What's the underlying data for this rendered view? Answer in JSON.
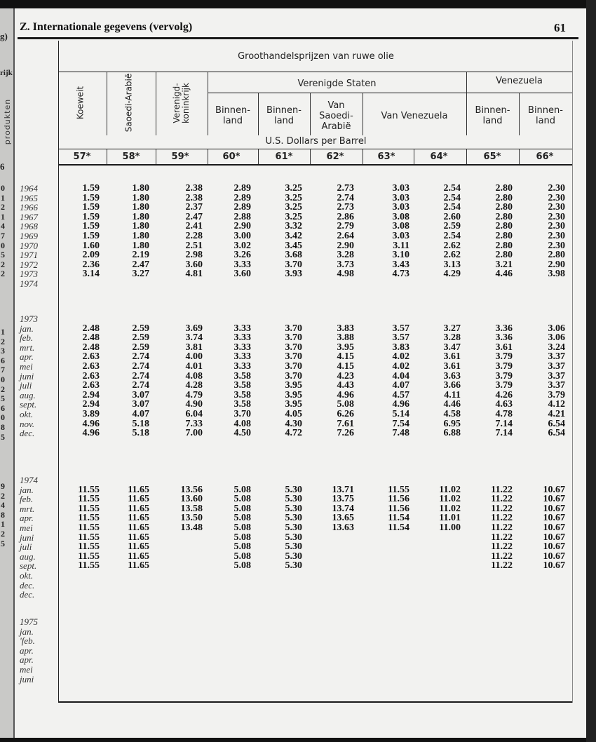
{
  "page": {
    "title": "Z. Internationale gegevens (vervolg)",
    "page_number": "61"
  },
  "previous_page_edge": {
    "fragments": [
      "g)",
      "rijk",
      "produkten",
      "6"
    ],
    "digits_1": "0\n1\n2\n1\n4\n7\n0\n5\n2\n2",
    "digits_2": "1\n2\n3\n6\n7\n0\n2\n5\n6\n0\n8\n5",
    "digits_3": "9\n2\n4\n8\n1\n2\n5"
  },
  "table": {
    "caption": "Groothandelsprijzen van ruwe olie",
    "unit": "U.S. Dollars per Barrel",
    "groups": {
      "us": "Verenigde Staten",
      "venezuela": "Venezuela"
    },
    "columns": [
      {
        "label": "Koeweit",
        "code": "57*"
      },
      {
        "label": "Saoedi-Arabië",
        "code": "58*"
      },
      {
        "label": "Verenigd-\nkoninkrijk",
        "code": "59*"
      },
      {
        "label": "Binnen-\nland",
        "code": "60*"
      },
      {
        "label": "Binnen-\nland",
        "code": "61*"
      },
      {
        "label": "Van\nSaoedi-\nArabië",
        "code": "62*"
      },
      {
        "label": "Van Venezuela",
        "code": "63*"
      },
      {
        "label": "",
        "code": "64*"
      },
      {
        "label": "Binnen-\nland",
        "code": "65*"
      },
      {
        "label": "Binnen-\nland",
        "code": "66*"
      }
    ],
    "sections": [
      {
        "heading": "",
        "rows": [
          {
            "label": "1964",
            "values": [
              "1.59",
              "1.80",
              "2.38",
              "2.89",
              "3.25",
              "2.73",
              "3.03",
              "2.54",
              "2.80",
              "2.30"
            ]
          },
          {
            "label": "1965",
            "values": [
              "1.59",
              "1.80",
              "2.38",
              "2.89",
              "3.25",
              "2.74",
              "3.03",
              "2.54",
              "2.80",
              "2.30"
            ]
          },
          {
            "label": "1966",
            "values": [
              "1.59",
              "1.80",
              "2.37",
              "2.89",
              "3.25",
              "2.73",
              "3.03",
              "2.54",
              "2.80",
              "2.30"
            ]
          },
          {
            "label": "1967",
            "values": [
              "1.59",
              "1.80",
              "2.47",
              "2.88",
              "3.25",
              "2.86",
              "3.08",
              "2.60",
              "2.80",
              "2.30"
            ]
          },
          {
            "label": "1968",
            "values": [
              "1.59",
              "1.80",
              "2.41",
              "2.90",
              "3.32",
              "2.79",
              "3.08",
              "2.59",
              "2.80",
              "2.30"
            ]
          },
          {
            "label": "1969",
            "values": [
              "1.59",
              "1.80",
              "2.28",
              "3.00",
              "3.42",
              "2.64",
              "3.03",
              "2.54",
              "2.80",
              "2.30"
            ]
          },
          {
            "label": "1970",
            "values": [
              "1.60",
              "1.80",
              "2.51",
              "3.02",
              "3.45",
              "2.90",
              "3.11",
              "2.62",
              "2.80",
              "2.30"
            ]
          },
          {
            "label": "1971",
            "values": [
              "2.09",
              "2.19",
              "2.98",
              "3.26",
              "3.68",
              "3.28",
              "3.10",
              "2.62",
              "2.80",
              "2.80"
            ]
          },
          {
            "label": "1972",
            "values": [
              "2.36",
              "2.47",
              "3.60",
              "3.33",
              "3.70",
              "3.73",
              "3.43",
              "3.13",
              "3.21",
              "2.90"
            ]
          },
          {
            "label": "1973",
            "values": [
              "3.14",
              "3.27",
              "4.81",
              "3.60",
              "3.93",
              "4.98",
              "4.73",
              "4.29",
              "4.46",
              "3.98"
            ]
          },
          {
            "label": "1974",
            "values": []
          }
        ]
      },
      {
        "heading": "1973",
        "rows": [
          {
            "label": "jan.",
            "values": [
              "2.48",
              "2.59",
              "3.69",
              "3.33",
              "3.70",
              "3.83",
              "3.57",
              "3.27",
              "3.36",
              "3.06"
            ]
          },
          {
            "label": "feb.",
            "values": [
              "2.48",
              "2.59",
              "3.74",
              "3.33",
              "3.70",
              "3.88",
              "3.57",
              "3.28",
              "3.36",
              "3.06"
            ]
          },
          {
            "label": "mrt.",
            "values": [
              "2.48",
              "2.59",
              "3.81",
              "3.33",
              "3.70",
              "3.95",
              "3.83",
              "3.47",
              "3.61",
              "3.24"
            ]
          },
          {
            "label": "apr.",
            "values": [
              "2.63",
              "2.74",
              "4.00",
              "3.33",
              "3.70",
              "4.15",
              "4.02",
              "3.61",
              "3.79",
              "3.37"
            ]
          },
          {
            "label": "mei",
            "values": [
              "2.63",
              "2.74",
              "4.01",
              "3.33",
              "3.70",
              "4.15",
              "4.02",
              "3.61",
              "3.79",
              "3.37"
            ]
          },
          {
            "label": "juni",
            "values": [
              "2.63",
              "2.74",
              "4.08",
              "3.58",
              "3.70",
              "4.23",
              "4.04",
              "3.63",
              "3.79",
              "3.37"
            ]
          },
          {
            "label": "juli",
            "values": [
              "2.63",
              "2.74",
              "4.28",
              "3.58",
              "3.95",
              "4.43",
              "4.07",
              "3.66",
              "3.79",
              "3.37"
            ]
          },
          {
            "label": "aug.",
            "values": [
              "2.94",
              "3.07",
              "4.79",
              "3.58",
              "3.95",
              "4.96",
              "4.57",
              "4.11",
              "4.26",
              "3.79"
            ]
          },
          {
            "label": "sept.",
            "values": [
              "2.94",
              "3.07",
              "4.90",
              "3.58",
              "3.95",
              "5.08",
              "4.96",
              "4.46",
              "4.63",
              "4.12"
            ]
          },
          {
            "label": "okt.",
            "values": [
              "3.89",
              "4.07",
              "6.04",
              "3.70",
              "4.05",
              "6.26",
              "5.14",
              "4.58",
              "4.78",
              "4.21"
            ]
          },
          {
            "label": "nov.",
            "values": [
              "4.96",
              "5.18",
              "7.33",
              "4.08",
              "4.30",
              "7.61",
              "7.54",
              "6.95",
              "7.14",
              "6.54"
            ]
          },
          {
            "label": "dec.",
            "values": [
              "4.96",
              "5.18",
              "7.00",
              "4.50",
              "4.72",
              "7.26",
              "7.48",
              "6.88",
              "7.14",
              "6.54"
            ]
          }
        ]
      },
      {
        "heading": "1974",
        "rows": [
          {
            "label": "jan.",
            "values": [
              "11.55",
              "11.65",
              "13.56",
              "5.08",
              "5.30",
              "13.71",
              "11.55",
              "11.02",
              "11.22",
              "10.67"
            ]
          },
          {
            "label": "feb.",
            "values": [
              "11.55",
              "11.65",
              "13.60",
              "5.08",
              "5.30",
              "13.75",
              "11.56",
              "11.02",
              "11.22",
              "10.67"
            ]
          },
          {
            "label": "mrt.",
            "values": [
              "11.55",
              "11.65",
              "13.58",
              "5.08",
              "5.30",
              "13.74",
              "11.56",
              "11.02",
              "11.22",
              "10.67"
            ]
          },
          {
            "label": "apr.",
            "values": [
              "11.55",
              "11.65",
              "13.50",
              "5.08",
              "5.30",
              "13.65",
              "11.54",
              "11.01",
              "11.22",
              "10.67"
            ]
          },
          {
            "label": "mei",
            "values": [
              "11.55",
              "11.65",
              "13.48",
              "5.08",
              "5.30",
              "13.63",
              "11.54",
              "11.00",
              "11.22",
              "10.67"
            ]
          },
          {
            "label": "juni",
            "values": [
              "11.55",
              "11.65",
              "",
              "5.08",
              "5.30",
              "",
              "",
              "",
              "11.22",
              "10.67"
            ]
          },
          {
            "label": "juli",
            "values": [
              "11.55",
              "11.65",
              "",
              "5.08",
              "5.30",
              "",
              "",
              "",
              "11.22",
              "10.67"
            ]
          },
          {
            "label": "aug.",
            "values": [
              "11.55",
              "11.65",
              "",
              "5.08",
              "5.30",
              "",
              "",
              "",
              "11.22",
              "10.67"
            ]
          },
          {
            "label": "sept.",
            "values": [
              "11.55",
              "11.65",
              "",
              "5.08",
              "5.30",
              "",
              "",
              "",
              "11.22",
              "10.67"
            ]
          },
          {
            "label": "okt.",
            "values": []
          },
          {
            "label": "dec.",
            "values": []
          },
          {
            "label": "dec.",
            "values": []
          }
        ]
      },
      {
        "heading": "1975",
        "rows": [
          {
            "label": "jan.",
            "values": []
          },
          {
            "label": "'feb.",
            "values": []
          },
          {
            "label": "apr.",
            "values": []
          },
          {
            "label": "apr.",
            "values": []
          },
          {
            "label": "mei",
            "values": []
          },
          {
            "label": "juni",
            "values": []
          }
        ]
      }
    ]
  }
}
